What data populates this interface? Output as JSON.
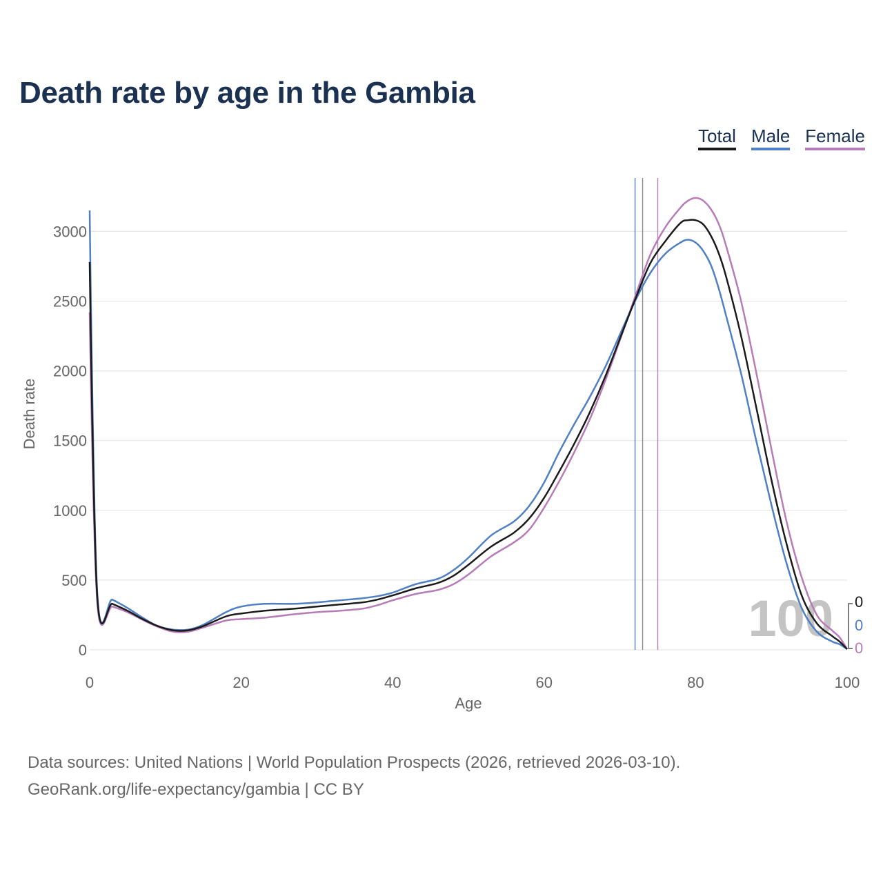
{
  "title": "Death rate by age in the Gambia",
  "legend": [
    {
      "label": "Total",
      "color": "#1a1a1a"
    },
    {
      "label": "Male",
      "color": "#4f7fc4"
    },
    {
      "label": "Female",
      "color": "#b77bb7"
    }
  ],
  "source": {
    "line1": "Data sources: United Nations | World Population Prospects (2026, retrieved 2026-03-10).",
    "line2": "GeoRank.org/life-expectancy/gambia | CC BY"
  },
  "chart_data": {
    "type": "line",
    "xlabel": "Age",
    "ylabel": "Death rate",
    "xlim": [
      0,
      100
    ],
    "ylim": [
      0,
      3200
    ],
    "xticks": [
      0,
      20,
      40,
      60,
      80,
      100
    ],
    "yticks": [
      0,
      500,
      1000,
      1500,
      2000,
      2500,
      3000
    ],
    "grid": true,
    "legend_position": "top-right",
    "x": [
      0,
      1,
      3,
      5,
      7,
      9,
      11,
      13,
      15,
      18,
      20,
      23,
      27,
      30,
      33,
      36,
      38,
      40,
      43,
      46,
      48,
      50,
      53,
      56,
      58,
      60,
      62,
      64,
      66,
      68,
      70,
      72,
      74,
      76,
      78,
      79,
      80,
      81,
      82,
      83,
      84,
      86,
      88,
      90,
      92,
      94,
      96,
      98,
      99,
      100
    ],
    "series": [
      {
        "name": "Total",
        "color": "#1a1a1a",
        "values": [
          2780,
          380,
          330,
          280,
          220,
          170,
          140,
          140,
          170,
          240,
          260,
          280,
          295,
          310,
          325,
          340,
          360,
          390,
          440,
          480,
          530,
          610,
          740,
          840,
          940,
          1090,
          1280,
          1480,
          1700,
          1950,
          2230,
          2510,
          2770,
          2930,
          3060,
          3080,
          3080,
          3050,
          2970,
          2850,
          2680,
          2250,
          1740,
          1220,
          760,
          390,
          190,
          100,
          60,
          5
        ]
      },
      {
        "name": "Male",
        "color": "#4f7fc4",
        "values": [
          3150,
          410,
          360,
          300,
          230,
          170,
          145,
          145,
          180,
          270,
          310,
          330,
          330,
          340,
          355,
          370,
          385,
          410,
          470,
          510,
          570,
          660,
          820,
          920,
          1030,
          1200,
          1420,
          1620,
          1810,
          2020,
          2260,
          2500,
          2700,
          2840,
          2920,
          2940,
          2920,
          2860,
          2760,
          2600,
          2400,
          1980,
          1500,
          1040,
          620,
          300,
          130,
          60,
          40,
          5
        ]
      },
      {
        "name": "Female",
        "color": "#b77bb7",
        "values": [
          2420,
          340,
          310,
          270,
          215,
          165,
          130,
          130,
          160,
          210,
          220,
          230,
          255,
          270,
          280,
          295,
          320,
          355,
          400,
          430,
          470,
          540,
          670,
          770,
          860,
          1020,
          1210,
          1420,
          1650,
          1920,
          2220,
          2530,
          2830,
          3030,
          3170,
          3220,
          3240,
          3220,
          3160,
          3060,
          2900,
          2500,
          1990,
          1440,
          920,
          520,
          250,
          140,
          90,
          5
        ]
      }
    ],
    "reference_lines": [
      {
        "series": "Male",
        "x": 72
      },
      {
        "series": "Total",
        "x": 73
      },
      {
        "series": "Female",
        "x": 75
      }
    ],
    "annotation": {
      "text": "100",
      "tick_value": "0"
    }
  }
}
